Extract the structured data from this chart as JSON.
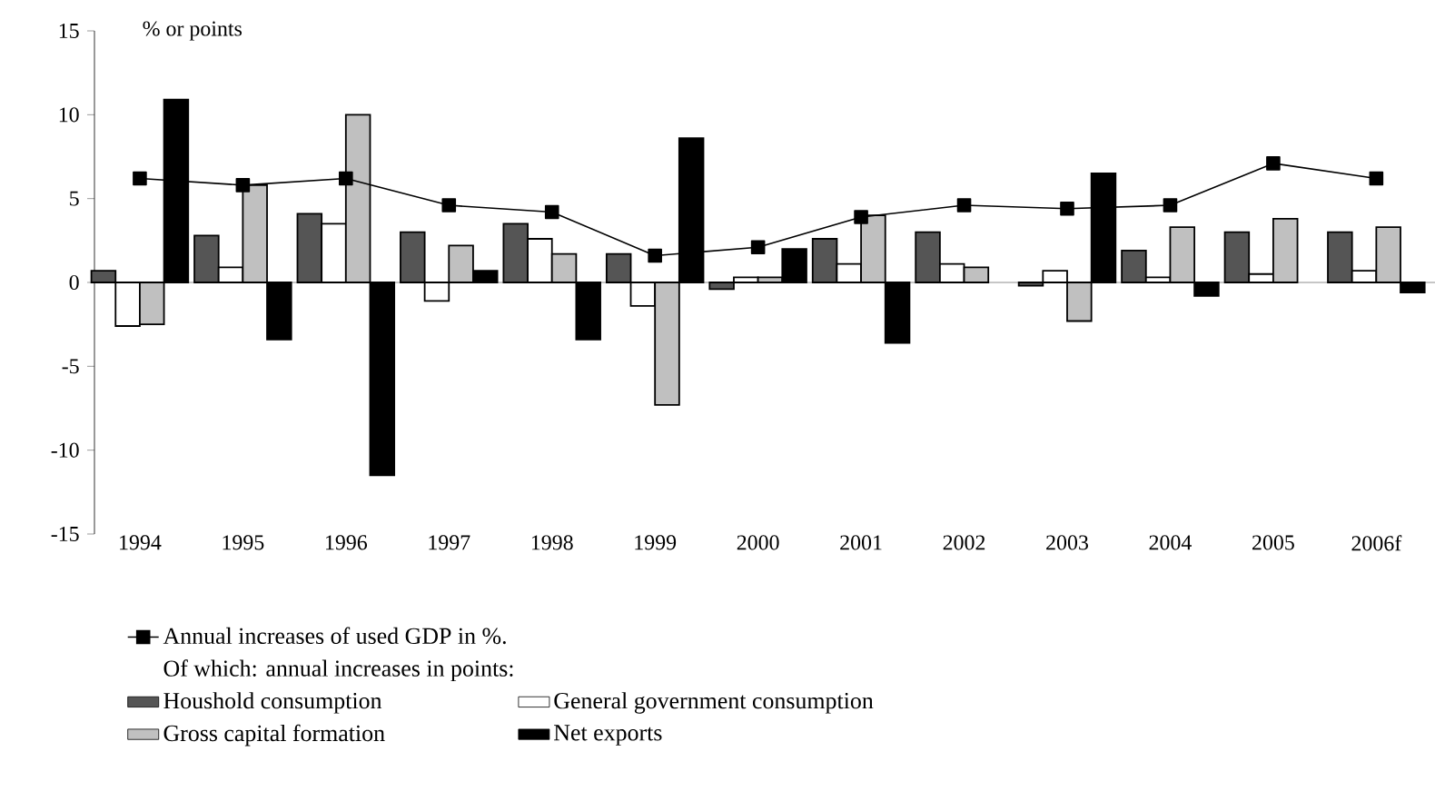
{
  "chart_data": {
    "type": "bar",
    "ylabel": "% or points",
    "categories": [
      "1994",
      "1995",
      "1996",
      "1997",
      "1998",
      "1999",
      "2000",
      "2001",
      "2002",
      "2003",
      "2004",
      "2005",
      "2006f"
    ],
    "series": [
      {
        "name": "Annual increases of used GDP in  %.",
        "type": "line",
        "color": "#000000",
        "marker": "square",
        "values": [
          6.2,
          5.8,
          6.2,
          4.6,
          4.2,
          1.6,
          2.1,
          3.9,
          4.6,
          4.4,
          4.6,
          7.1,
          6.2
        ]
      },
      {
        "name": "Houshold consumption",
        "color": "#555555",
        "values": [
          0.7,
          2.8,
          4.1,
          3.0,
          3.5,
          1.7,
          -0.4,
          2.6,
          3.0,
          -0.2,
          1.9,
          3.0,
          3.0
        ]
      },
      {
        "name": "General government consumption",
        "color": "#ffffff",
        "values": [
          -2.6,
          0.9,
          3.5,
          -1.1,
          2.6,
          -1.4,
          0.3,
          1.1,
          1.1,
          0.7,
          0.3,
          0.5,
          0.7
        ]
      },
      {
        "name": "Gross capital formation",
        "color": "#c0c0c0",
        "values": [
          -2.5,
          5.8,
          10.0,
          2.2,
          1.7,
          -7.3,
          0.3,
          4.0,
          0.9,
          -2.3,
          3.3,
          3.8,
          3.3
        ]
      },
      {
        "name": "Net exports",
        "color": "#000000",
        "values": [
          10.9,
          -3.4,
          -11.5,
          0.7,
          -3.4,
          8.6,
          2.0,
          -3.6,
          null,
          6.5,
          -0.8,
          null,
          -0.6
        ]
      }
    ],
    "ylim": [
      -15,
      15
    ],
    "yticks": [
      -15,
      -10,
      -5,
      0,
      5,
      10,
      15
    ],
    "legend": "bottom",
    "annotations": [
      "Of which: annual increases in points:"
    ]
  }
}
